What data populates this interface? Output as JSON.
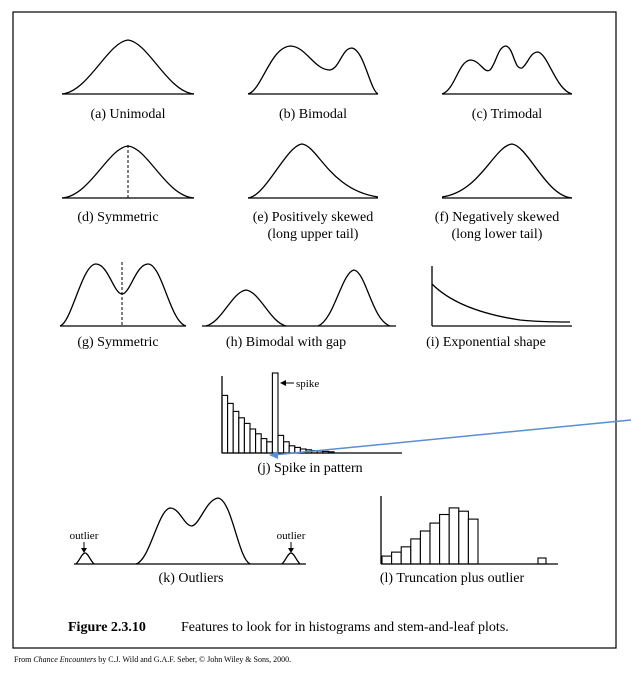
{
  "panels": {
    "a": "(a)  Unimodal",
    "b": "(b)  Bimodal",
    "c": "(c)  Trimodal",
    "d": "(d)  Symmetric",
    "e1": "(e)  Positively skewed",
    "e2": "(long upper tail)",
    "f1": "(f)  Negatively skewed",
    "f2": "(long lower tail)",
    "g": "(g)  Symmetric",
    "h": "(h)  Bimodal with gap",
    "i": "(i)  Exponential shape",
    "j": "(j)  Spike in pattern",
    "k": "(k)  Outliers",
    "l": "(l)  Truncation plus outlier"
  },
  "annotations": {
    "spike": "spike",
    "outlier_left": "outlier",
    "outlier_right": "outlier"
  },
  "figure": {
    "number": "Figure 2.3.10",
    "caption": "Features to look for in histograms and stem-and-leaf plots."
  },
  "source": {
    "prefix": "From ",
    "title": "Chance Encounters",
    "suffix": " by C.J. Wild and G.A.F. Seber, © John Wiley & Sons, 2000."
  },
  "histograms": {
    "j_values": [
      0.72,
      0.62,
      0.52,
      0.44,
      0.37,
      0.3,
      0.24,
      0.18,
      0.14,
      1.0,
      0.22,
      0.14,
      0.09,
      0.07,
      0.05,
      0.04,
      0.03,
      0.025,
      0.02,
      0.015
    ],
    "l_values": [
      0.12,
      0.18,
      0.26,
      0.38,
      0.5,
      0.62,
      0.75,
      0.85,
      0.8,
      0.68
    ]
  },
  "colors": {
    "ink": "#000000",
    "pointer": "#5b8ed0"
  }
}
